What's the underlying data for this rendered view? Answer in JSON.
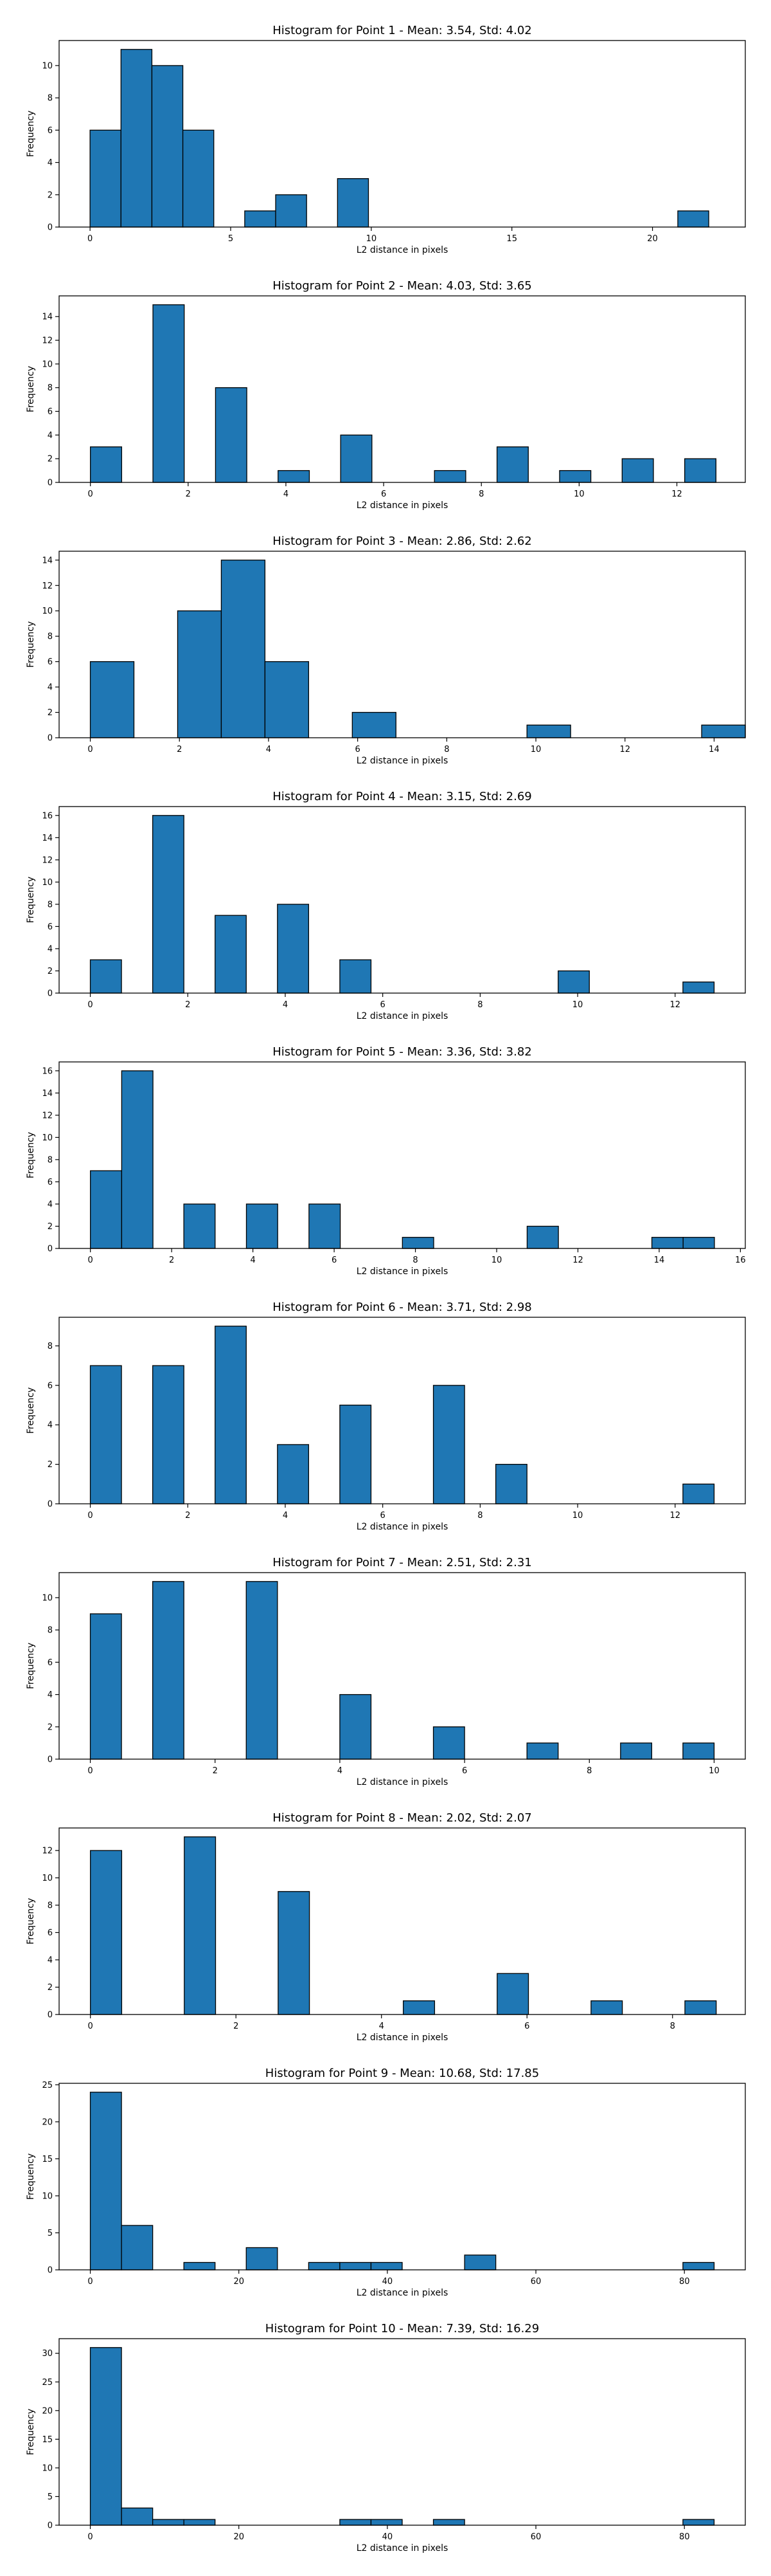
{
  "chart_data": [
    {
      "type": "bar",
      "title": "Histogram for Point 1 - Mean: 3.54, Std: 4.02",
      "xlabel": "L2 distance in pixels",
      "ylabel": "Frequency",
      "xlim": [
        -1.1,
        23.3
      ],
      "ylim": [
        0,
        11.55
      ],
      "xticks": [
        0,
        5,
        10,
        15,
        20
      ],
      "yticks": [
        0,
        2,
        4,
        6,
        8,
        10
      ],
      "bins": [
        {
          "x0": 0.0,
          "x1": 1.1,
          "count": 6
        },
        {
          "x0": 1.1,
          "x1": 2.2,
          "count": 11
        },
        {
          "x0": 2.2,
          "x1": 3.3,
          "count": 10
        },
        {
          "x0": 3.3,
          "x1": 4.4,
          "count": 6
        },
        {
          "x0": 5.5,
          "x1": 6.6,
          "count": 1
        },
        {
          "x0": 6.6,
          "x1": 7.7,
          "count": 2
        },
        {
          "x0": 8.8,
          "x1": 9.9,
          "count": 3
        },
        {
          "x0": 20.9,
          "x1": 22.0,
          "count": 1
        }
      ]
    },
    {
      "type": "bar",
      "title": "Histogram for Point 2 - Mean: 4.03, Std: 3.65",
      "xlabel": "L2 distance in pixels",
      "ylabel": "Frequency",
      "xlim": [
        -0.64,
        13.4
      ],
      "ylim": [
        0,
        15.75
      ],
      "xticks": [
        0,
        2,
        4,
        6,
        8,
        10,
        12
      ],
      "yticks": [
        0,
        2,
        4,
        6,
        8,
        10,
        12,
        14
      ],
      "bins": [
        {
          "x0": 0.0,
          "x1": 0.64,
          "count": 3
        },
        {
          "x0": 1.28,
          "x1": 1.92,
          "count": 15
        },
        {
          "x0": 2.56,
          "x1": 3.2,
          "count": 8
        },
        {
          "x0": 3.84,
          "x1": 4.48,
          "count": 1
        },
        {
          "x0": 5.12,
          "x1": 5.76,
          "count": 4
        },
        {
          "x0": 7.04,
          "x1": 7.68,
          "count": 1
        },
        {
          "x0": 8.32,
          "x1": 8.96,
          "count": 3
        },
        {
          "x0": 9.6,
          "x1": 10.24,
          "count": 1
        },
        {
          "x0": 10.88,
          "x1": 11.52,
          "count": 2
        },
        {
          "x0": 12.16,
          "x1": 12.8,
          "count": 2
        }
      ]
    },
    {
      "type": "bar",
      "title": "Histogram for Point 3 - Mean: 2.86, Std: 2.62",
      "xlabel": "L2 distance in pixels",
      "ylabel": "Frequency",
      "xlim": [
        -0.7,
        14.7
      ],
      "ylim": [
        0,
        14.7
      ],
      "xticks": [
        0,
        2,
        4,
        6,
        8,
        10,
        12,
        14
      ],
      "yticks": [
        0,
        2,
        4,
        6,
        8,
        10,
        12,
        14
      ],
      "bins": [
        {
          "x0": 0.0,
          "x1": 0.98,
          "count": 6
        },
        {
          "x0": 1.96,
          "x1": 2.94,
          "count": 10
        },
        {
          "x0": 2.94,
          "x1": 3.92,
          "count": 14
        },
        {
          "x0": 3.92,
          "x1": 4.9,
          "count": 6
        },
        {
          "x0": 5.88,
          "x1": 6.86,
          "count": 2
        },
        {
          "x0": 9.8,
          "x1": 10.78,
          "count": 1
        },
        {
          "x0": 13.72,
          "x1": 14.7,
          "count": 1
        }
      ]
    },
    {
      "type": "bar",
      "title": "Histogram for Point 4 - Mean: 3.15, Std: 2.69",
      "xlabel": "L2 distance in pixels",
      "ylabel": "Frequency",
      "xlim": [
        -0.64,
        13.44
      ],
      "ylim": [
        0,
        16.8
      ],
      "xticks": [
        0,
        2,
        4,
        6,
        8,
        10,
        12
      ],
      "yticks": [
        0,
        2,
        4,
        6,
        8,
        10,
        12,
        14,
        16
      ],
      "bins": [
        {
          "x0": 0.0,
          "x1": 0.64,
          "count": 3
        },
        {
          "x0": 1.28,
          "x1": 1.92,
          "count": 16
        },
        {
          "x0": 2.56,
          "x1": 3.2,
          "count": 7
        },
        {
          "x0": 3.84,
          "x1": 4.48,
          "count": 8
        },
        {
          "x0": 5.12,
          "x1": 5.76,
          "count": 3
        },
        {
          "x0": 9.6,
          "x1": 10.24,
          "count": 2
        },
        {
          "x0": 12.16,
          "x1": 12.8,
          "count": 1
        }
      ]
    },
    {
      "type": "bar",
      "title": "Histogram for Point 5 - Mean: 3.36, Std: 3.82",
      "xlabel": "L2 distance in pixels",
      "ylabel": "Frequency",
      "xlim": [
        -0.77,
        16.12
      ],
      "ylim": [
        0,
        16.8
      ],
      "xticks": [
        0,
        2,
        4,
        6,
        8,
        10,
        12,
        14,
        16
      ],
      "yticks": [
        0,
        2,
        4,
        6,
        8,
        10,
        12,
        14,
        16
      ],
      "bins": [
        {
          "x0": 0.0,
          "x1": 0.77,
          "count": 7
        },
        {
          "x0": 0.77,
          "x1": 1.54,
          "count": 16
        },
        {
          "x0": 2.3,
          "x1": 3.07,
          "count": 4
        },
        {
          "x0": 3.84,
          "x1": 4.61,
          "count": 4
        },
        {
          "x0": 5.38,
          "x1": 6.15,
          "count": 4
        },
        {
          "x0": 7.68,
          "x1": 8.45,
          "count": 1
        },
        {
          "x0": 10.75,
          "x1": 11.52,
          "count": 2
        },
        {
          "x0": 13.82,
          "x1": 14.59,
          "count": 1
        },
        {
          "x0": 14.59,
          "x1": 15.36,
          "count": 1
        }
      ]
    },
    {
      "type": "bar",
      "title": "Histogram for Point 6 - Mean: 3.71, Std: 2.98",
      "xlabel": "L2 distance in pixels",
      "ylabel": "Frequency",
      "xlim": [
        -0.64,
        13.44
      ],
      "ylim": [
        0,
        9.45
      ],
      "xticks": [
        0,
        2,
        4,
        6,
        8,
        10,
        12
      ],
      "yticks": [
        0,
        2,
        4,
        6,
        8
      ],
      "bins": [
        {
          "x0": 0.0,
          "x1": 0.64,
          "count": 7
        },
        {
          "x0": 1.28,
          "x1": 1.92,
          "count": 7
        },
        {
          "x0": 2.56,
          "x1": 3.2,
          "count": 9
        },
        {
          "x0": 3.84,
          "x1": 4.48,
          "count": 3
        },
        {
          "x0": 5.12,
          "x1": 5.76,
          "count": 5
        },
        {
          "x0": 7.04,
          "x1": 7.68,
          "count": 6
        },
        {
          "x0": 8.32,
          "x1": 8.96,
          "count": 2
        },
        {
          "x0": 12.16,
          "x1": 12.8,
          "count": 1
        }
      ]
    },
    {
      "type": "bar",
      "title": "Histogram for Point 7 - Mean: 2.51, Std: 2.31",
      "xlabel": "L2 distance in pixels",
      "ylabel": "Frequency",
      "xlim": [
        -0.5,
        10.5
      ],
      "ylim": [
        0,
        11.55
      ],
      "xticks": [
        0,
        2,
        4,
        6,
        8,
        10
      ],
      "yticks": [
        0,
        2,
        4,
        6,
        8,
        10
      ],
      "bins": [
        {
          "x0": 0.0,
          "x1": 0.5,
          "count": 9
        },
        {
          "x0": 1.0,
          "x1": 1.5,
          "count": 11
        },
        {
          "x0": 2.5,
          "x1": 3.0,
          "count": 11
        },
        {
          "x0": 4.0,
          "x1": 4.5,
          "count": 4
        },
        {
          "x0": 5.5,
          "x1": 6.0,
          "count": 2
        },
        {
          "x0": 7.0,
          "x1": 7.5,
          "count": 1
        },
        {
          "x0": 8.5,
          "x1": 9.0,
          "count": 1
        },
        {
          "x0": 9.5,
          "x1": 10.0,
          "count": 1
        }
      ]
    },
    {
      "type": "bar",
      "title": "Histogram for Point 8 - Mean: 2.02, Std: 2.07",
      "xlabel": "L2 distance in pixels",
      "ylabel": "Frequency",
      "xlim": [
        -0.43,
        9.0
      ],
      "ylim": [
        0,
        13.65
      ],
      "xticks": [
        0,
        2,
        4,
        6,
        8
      ],
      "yticks": [
        0,
        2,
        4,
        6,
        8,
        10,
        12
      ],
      "bins": [
        {
          "x0": 0.0,
          "x1": 0.43,
          "count": 12
        },
        {
          "x0": 1.29,
          "x1": 1.72,
          "count": 13
        },
        {
          "x0": 2.58,
          "x1": 3.01,
          "count": 9
        },
        {
          "x0": 4.3,
          "x1": 4.73,
          "count": 1
        },
        {
          "x0": 5.59,
          "x1": 6.02,
          "count": 3
        },
        {
          "x0": 6.88,
          "x1": 7.31,
          "count": 1
        },
        {
          "x0": 8.17,
          "x1": 8.6,
          "count": 1
        }
      ]
    },
    {
      "type": "bar",
      "title": "Histogram for Point 9 - Mean: 10.68, Std: 17.85",
      "xlabel": "L2 distance in pixels",
      "ylabel": "Frequency",
      "xlim": [
        -4.2,
        88.2
      ],
      "ylim": [
        0,
        25.2
      ],
      "xticks": [
        0,
        20,
        40,
        60,
        80
      ],
      "yticks": [
        0,
        5,
        10,
        15,
        20,
        25
      ],
      "bins": [
        {
          "x0": 0.0,
          "x1": 4.2,
          "count": 24
        },
        {
          "x0": 4.2,
          "x1": 8.4,
          "count": 6
        },
        {
          "x0": 12.6,
          "x1": 16.8,
          "count": 1
        },
        {
          "x0": 21.0,
          "x1": 25.2,
          "count": 3
        },
        {
          "x0": 29.4,
          "x1": 33.6,
          "count": 1
        },
        {
          "x0": 33.6,
          "x1": 37.8,
          "count": 1
        },
        {
          "x0": 37.8,
          "x1": 42.0,
          "count": 1
        },
        {
          "x0": 50.4,
          "x1": 54.6,
          "count": 2
        },
        {
          "x0": 79.8,
          "x1": 84.0,
          "count": 1
        }
      ]
    },
    {
      "type": "bar",
      "title": "Histogram for Point 10 - Mean: 7.39, Std: 16.29",
      "xlabel": "L2 distance in pixels",
      "ylabel": "Frequency",
      "xlim": [
        -4.2,
        88.2
      ],
      "ylim": [
        0,
        32.55
      ],
      "xticks": [
        0,
        20,
        40,
        60,
        80
      ],
      "yticks": [
        0,
        5,
        10,
        15,
        20,
        25,
        30
      ],
      "bins": [
        {
          "x0": 0.0,
          "x1": 4.2,
          "count": 31
        },
        {
          "x0": 4.2,
          "x1": 8.4,
          "count": 3
        },
        {
          "x0": 8.4,
          "x1": 12.6,
          "count": 1
        },
        {
          "x0": 12.6,
          "x1": 16.8,
          "count": 1
        },
        {
          "x0": 33.6,
          "x1": 37.8,
          "count": 1
        },
        {
          "x0": 37.8,
          "x1": 42.0,
          "count": 1
        },
        {
          "x0": 46.2,
          "x1": 50.4,
          "count": 1
        },
        {
          "x0": 79.8,
          "x1": 84.0,
          "count": 1
        }
      ]
    }
  ]
}
